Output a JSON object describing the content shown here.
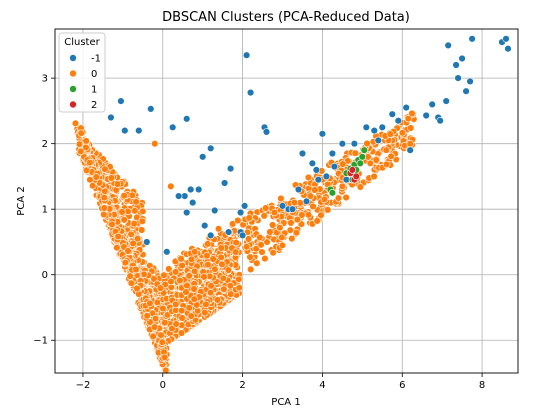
{
  "chart_data": {
    "type": "scatter",
    "title": "DBSCAN Clusters (PCA-Reduced Data)",
    "xlabel": "PCA 1",
    "ylabel": "PCA 2",
    "xlim": [
      -2.7,
      8.9
    ],
    "ylim": [
      -1.5,
      3.75
    ],
    "xticks": [
      -2,
      0,
      2,
      4,
      6,
      8
    ],
    "yticks": [
      -1,
      0,
      1,
      2,
      3
    ],
    "grid": true,
    "legend": {
      "title": "Cluster",
      "placement": "top-left"
    },
    "series": [
      {
        "name": "-1",
        "color": "#1f77b4",
        "x": [
          -1.05,
          -1.3,
          -0.95,
          -0.3,
          0.25,
          0.6,
          -0.6,
          1.0,
          1.2,
          0.9,
          0.55,
          0.6,
          0.7,
          1.3,
          1.55,
          1.7,
          1.95,
          2.1,
          2.2,
          2.55,
          2.6,
          1.95,
          2.0,
          2.05,
          3.0,
          3.15,
          3.4,
          3.6,
          3.85,
          3.9,
          4.0,
          4.25,
          4.5,
          4.6,
          4.8,
          5.1,
          5.3,
          5.4,
          5.5,
          5.75,
          5.9,
          6.1,
          6.2,
          6.6,
          6.75,
          6.9,
          6.95,
          7.1,
          7.15,
          7.35,
          7.4,
          7.5,
          7.6,
          7.7,
          7.75,
          8.5,
          8.6,
          8.65,
          1.65,
          1.2,
          0.75,
          0.4,
          1.05,
          3.25,
          3.5,
          3.75,
          4.1,
          4.3,
          -0.4,
          0.1
        ],
        "y": [
          2.65,
          2.4,
          2.2,
          2.53,
          2.25,
          2.38,
          2.2,
          1.8,
          1.93,
          1.3,
          1.2,
          0.95,
          1.3,
          0.98,
          1.4,
          1.62,
          0.95,
          3.35,
          2.78,
          2.25,
          2.18,
          0.65,
          0.6,
          1.05,
          1.05,
          1.0,
          1.3,
          1.12,
          1.6,
          1.45,
          2.15,
          1.85,
          2.0,
          1.45,
          2.0,
          2.25,
          2.2,
          2.05,
          2.25,
          2.45,
          2.35,
          2.55,
          1.9,
          2.43,
          2.6,
          2.4,
          2.35,
          2.65,
          3.5,
          3.2,
          3.0,
          3.3,
          2.8,
          2.95,
          3.6,
          3.55,
          3.6,
          3.45,
          0.65,
          0.6,
          1.1,
          1.2,
          0.75,
          1.0,
          1.85,
          1.7,
          1.5,
          1.65,
          0.5,
          0.35
        ]
      },
      {
        "name": "0",
        "color": "#ff7f0e"
      },
      {
        "name": "1",
        "color": "#2ca02c",
        "x": [
          4.6,
          4.7,
          4.8,
          4.9,
          5.0,
          5.05,
          4.75,
          4.85,
          4.95,
          4.2,
          4.25
        ],
        "y": [
          1.55,
          1.62,
          1.68,
          1.75,
          1.8,
          1.9,
          1.45,
          1.6,
          1.7,
          1.3,
          1.25
        ]
      },
      {
        "name": "2",
        "color": "#d62728",
        "x": [
          4.7,
          4.8,
          4.85,
          4.75
        ],
        "y": [
          1.55,
          1.45,
          1.5,
          1.6
        ]
      }
    ]
  }
}
